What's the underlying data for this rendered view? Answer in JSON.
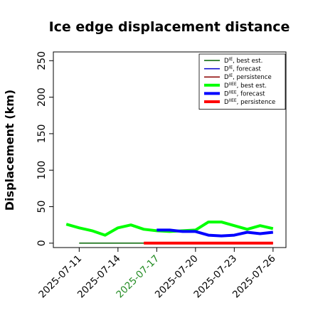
{
  "chart_data": {
    "type": "line",
    "title": "Ice edge displacement distance",
    "xlabel": "",
    "ylabel": "Displacement (km)",
    "ylim": [
      -6,
      262
    ],
    "yticks": [
      0,
      50,
      100,
      150,
      200,
      250
    ],
    "xlim": [
      "2025-07-09",
      "2025-07-27"
    ],
    "x_tick_labels": [
      {
        "label": "2025-07-11",
        "color": "#000000"
      },
      {
        "label": "2025-07-14",
        "color": "#000000"
      },
      {
        "label": "2025-07-17",
        "color": "#228b22"
      },
      {
        "label": "2025-07-20",
        "color": "#000000"
      },
      {
        "label": "2025-07-23",
        "color": "#000000"
      },
      {
        "label": "2025-07-26",
        "color": "#000000"
      }
    ],
    "legend_position": "top-right",
    "series": [
      {
        "name": "D^IE, best est.",
        "color": "#006400",
        "width": 1.5,
        "x": [
          "2025-07-11",
          "2025-07-17"
        ],
        "y": [
          0,
          0
        ]
      },
      {
        "name": "D^IE, forecast",
        "color": "#0000cd",
        "width": 1.5,
        "x": [],
        "y": []
      },
      {
        "name": "D^IE, persistence",
        "color": "#8b0000",
        "width": 1.5,
        "x": [
          "2025-07-17",
          "2025-07-26"
        ],
        "y": [
          0,
          0
        ]
      },
      {
        "name": "D^IIEE, best est.",
        "color": "#00ff00",
        "width": 4,
        "x": [
          "2025-07-10",
          "2025-07-11",
          "2025-07-12",
          "2025-07-13",
          "2025-07-14",
          "2025-07-15",
          "2025-07-16",
          "2025-07-17",
          "2025-07-18",
          "2025-07-19",
          "2025-07-20",
          "2025-07-21",
          "2025-07-22",
          "2025-07-23",
          "2025-07-24",
          "2025-07-25",
          "2025-07-26"
        ],
        "y": [
          26,
          21,
          17,
          11,
          21,
          25,
          19,
          17,
          16,
          17,
          18,
          29,
          29,
          24,
          19,
          24,
          20
        ]
      },
      {
        "name": "D^IIEE, forecast",
        "color": "#0000ff",
        "width": 4,
        "x": [
          "2025-07-17",
          "2025-07-18",
          "2025-07-19",
          "2025-07-20",
          "2025-07-21",
          "2025-07-22",
          "2025-07-23",
          "2025-07-24",
          "2025-07-25",
          "2025-07-26"
        ],
        "y": [
          18,
          18,
          16,
          16,
          11,
          10,
          11,
          15,
          13,
          15
        ]
      },
      {
        "name": "D^IIEE, persistence",
        "color": "#ff0000",
        "width": 4,
        "x": [
          "2025-07-16",
          "2025-07-26"
        ],
        "y": [
          0,
          0
        ]
      }
    ],
    "legend": [
      {
        "base": "D",
        "sup": "IE",
        "rest": ", best est.",
        "color": "#006400",
        "width": 1.5
      },
      {
        "base": "D",
        "sup": "IE",
        "rest": ", forecast",
        "color": "#0000cd",
        "width": 1.5
      },
      {
        "base": "D",
        "sup": "IE",
        "rest": ", persistence",
        "color": "#8b0000",
        "width": 1.5
      },
      {
        "base": "D",
        "sup": "IIEE",
        "rest": ", best est.",
        "color": "#00ff00",
        "width": 4
      },
      {
        "base": "D",
        "sup": "IIEE",
        "rest": ", forecast",
        "color": "#0000ff",
        "width": 4
      },
      {
        "base": "D",
        "sup": "IIEE",
        "rest": ", persistence",
        "color": "#ff0000",
        "width": 4
      }
    ]
  }
}
